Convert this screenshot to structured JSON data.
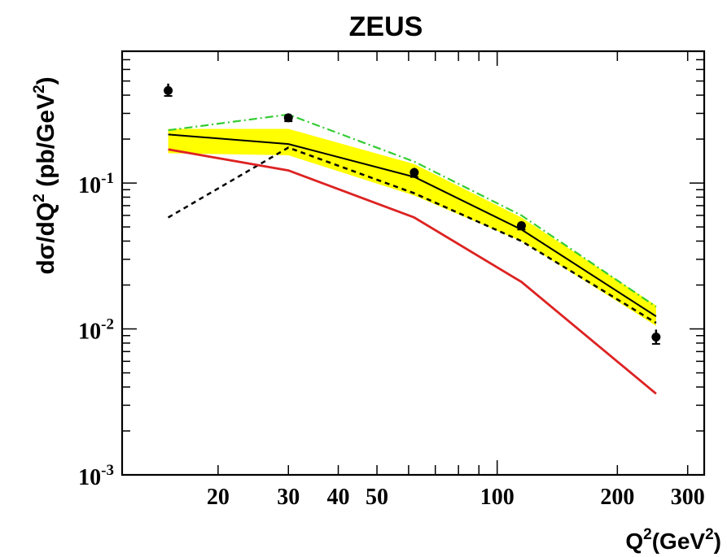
{
  "chart_data": {
    "type": "line",
    "title": "ZEUS",
    "ylabel": {
      "main": "dσ/dQ",
      "sup": "2",
      "unit_open": " (pb/GeV",
      "unit_sup": "2",
      "unit_close": ")"
    },
    "xlabel": {
      "main": "Q",
      "sup": "2",
      "unit_open": "(GeV",
      "unit_sup": "2",
      "unit_close": ")"
    },
    "xscale": "log",
    "yscale": "log",
    "xlim": [
      11.5,
      330
    ],
    "ylim": [
      0.001,
      0.8
    ],
    "x_tick_labels": [
      {
        "value": 20,
        "label": "20"
      },
      {
        "value": 30,
        "label": "30"
      },
      {
        "value": 40,
        "label": "40"
      },
      {
        "value": 50,
        "label": "50"
      },
      {
        "value": 100,
        "label": "100"
      },
      {
        "value": 200,
        "label": "200"
      },
      {
        "value": 300,
        "label": "300"
      }
    ],
    "y_tick_labels": [
      {
        "value": 0.001,
        "base": "10",
        "exp": "-3"
      },
      {
        "value": 0.01,
        "base": "10",
        "exp": "-2"
      },
      {
        "value": 0.1,
        "base": "10",
        "exp": "-1"
      }
    ],
    "band": {
      "x": [
        15,
        30,
        62,
        115,
        250
      ],
      "upper": [
        0.235,
        0.235,
        0.135,
        0.058,
        0.0145
      ],
      "lower": [
        0.16,
        0.155,
        0.082,
        0.04,
        0.0105
      ],
      "color": "#ffff00"
    },
    "series": [
      {
        "style": "data",
        "color": "#000000",
        "x": [
          15,
          30,
          62,
          115,
          250
        ],
        "y": [
          0.43,
          0.28,
          0.118,
          0.051,
          0.0088
        ],
        "yerr_low": [
          0.035,
          0.015,
          0.008,
          0.003,
          0.0009
        ],
        "yerr_high": [
          0.05,
          0.018,
          0.009,
          0.003,
          0.0011
        ]
      },
      {
        "style": "solid",
        "color": "#000000",
        "x": [
          15,
          30,
          62,
          115,
          250
        ],
        "y": [
          0.215,
          0.185,
          0.11,
          0.048,
          0.0122
        ]
      },
      {
        "style": "dashed",
        "color": "#000000",
        "x": [
          15,
          30,
          62,
          115,
          250
        ],
        "y": [
          0.058,
          0.175,
          0.085,
          0.04,
          0.011
        ]
      },
      {
        "style": "dashdot",
        "color": "#33cc33",
        "x": [
          15,
          30,
          62,
          115,
          250
        ],
        "y": [
          0.23,
          0.295,
          0.14,
          0.06,
          0.0142
        ]
      },
      {
        "style": "solid-red",
        "color": "#dd2222",
        "x": [
          15,
          30,
          62,
          115,
          250
        ],
        "y": [
          0.17,
          0.122,
          0.058,
          0.021,
          0.0036
        ]
      }
    ]
  }
}
